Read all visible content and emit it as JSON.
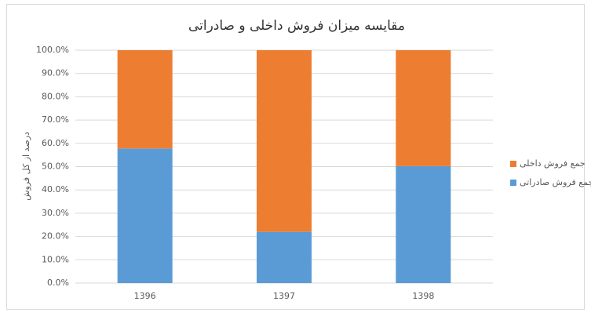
{
  "chart_data": {
    "type": "stacked-bar",
    "title": "مقایسه میزان فروش داخلی و صادراتی",
    "y_label": "درصد از کل فروش",
    "categories": [
      "1396",
      "1397",
      "1398"
    ],
    "series": [
      {
        "name": "جمع فروش صادراتی",
        "color": "#5b9bd5",
        "values": [
          57.8,
          22,
          50.2
        ]
      },
      {
        "name": "جمع فروش داخلی",
        "color": "#ed7d31",
        "values": [
          42.2,
          78,
          49.8
        ]
      }
    ],
    "ylim": [
      0,
      100
    ],
    "yticks": [
      {
        "value": 0,
        "label": "0.0%"
      },
      {
        "value": 10,
        "label": "10.0%"
      },
      {
        "value": 20,
        "label": "20.0%"
      },
      {
        "value": 30,
        "label": "30.0%"
      },
      {
        "value": 40,
        "label": "40.0%"
      },
      {
        "value": 50,
        "label": "50.0%"
      },
      {
        "value": 60,
        "label": "60.0%"
      },
      {
        "value": 70,
        "label": "70.0%"
      },
      {
        "value": 80,
        "label": "80.0%"
      },
      {
        "value": 90,
        "label": "90.0%"
      },
      {
        "value": 100,
        "label": "100.0%"
      }
    ],
    "grid": true,
    "legend": "right"
  }
}
